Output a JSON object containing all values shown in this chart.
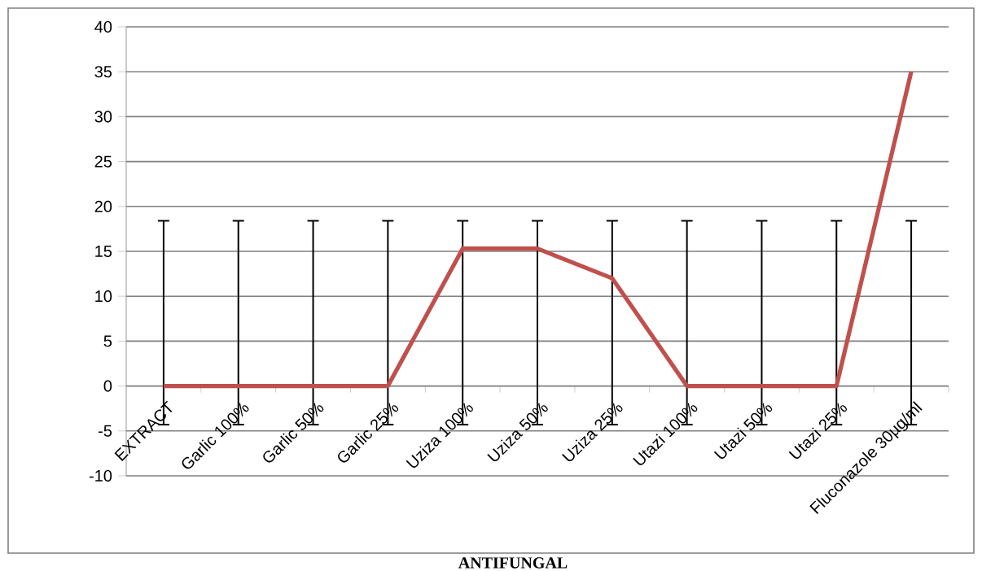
{
  "chart_data": {
    "type": "line",
    "xlabel": "ANTIFUNGAL",
    "categories": [
      "EXTRACT",
      "Garlic 100%",
      "Garlic 50%",
      "Garlic 25%",
      "Uziza 100%",
      "Uziza 50%",
      "Uziza 25%",
      "Utazi 100%",
      "Utazi 50%",
      "Utazi 25%",
      "Fluconazole 30µg/ml"
    ],
    "series": [
      {
        "color": "#c0504d",
        "values": [
          0,
          0,
          0,
          0,
          15.3,
          15.3,
          12,
          0,
          0,
          0,
          35
        ],
        "errors": [
          [
            -4.3,
            18.4
          ],
          [
            -4.3,
            18.4
          ],
          [
            -4.3,
            18.4
          ],
          [
            -4.3,
            18.4
          ],
          [
            -4.3,
            18.4
          ],
          [
            -4.3,
            18.4
          ],
          [
            -4.3,
            18.4
          ],
          [
            -4.3,
            18.4
          ],
          [
            -4.3,
            18.4
          ],
          [
            -4.3,
            18.4
          ],
          [
            -4.3,
            18.4
          ]
        ]
      }
    ],
    "ylim": [
      -10,
      40
    ],
    "yticks": [
      -10,
      -5,
      0,
      5,
      10,
      15,
      20,
      25,
      30,
      35,
      40
    ],
    "grid": "y",
    "marker": "none",
    "line_style": "solid"
  }
}
